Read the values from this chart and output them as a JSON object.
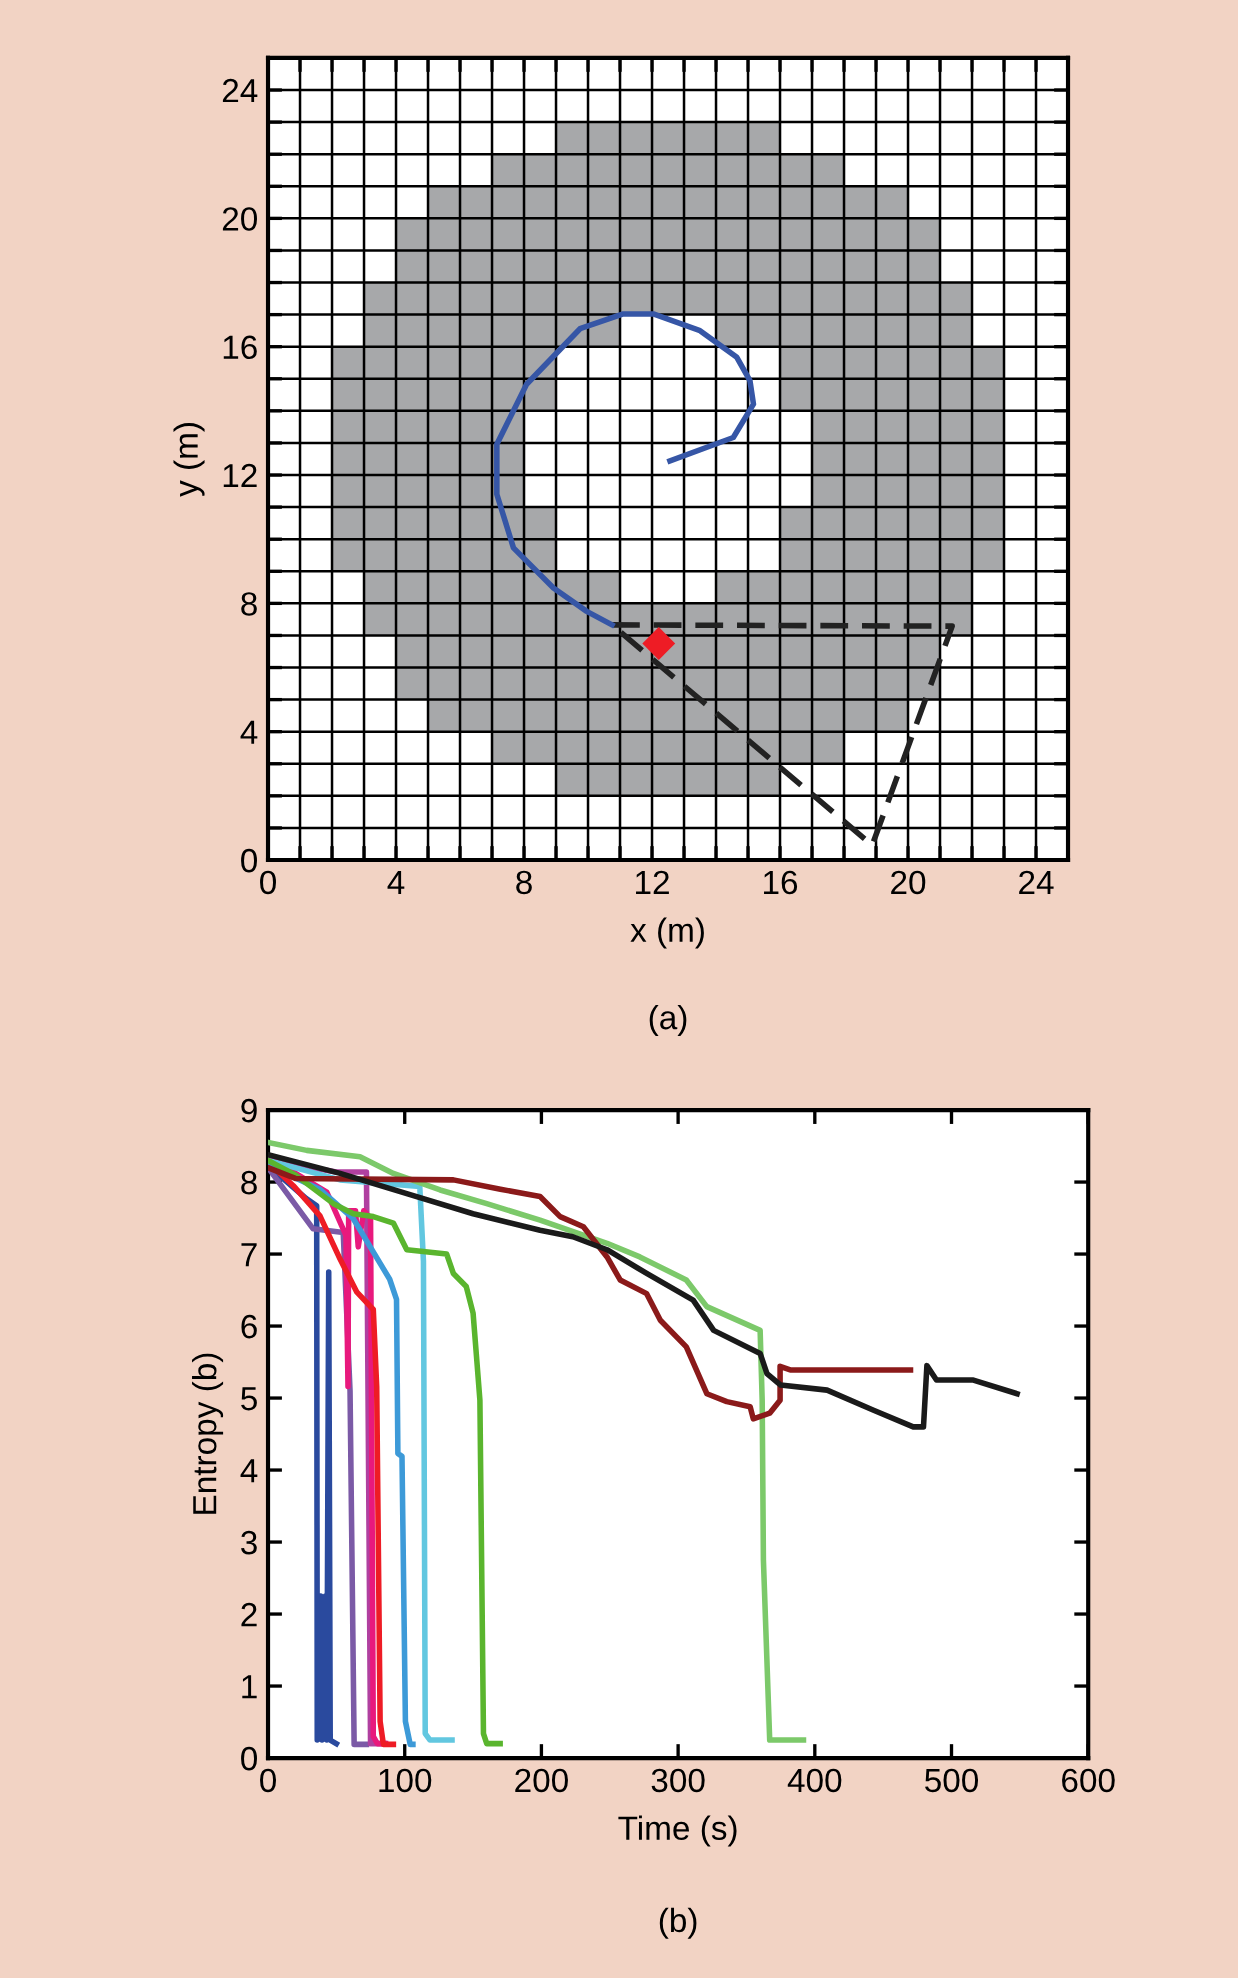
{
  "chart_data": [
    {
      "type": "line",
      "xlabel": "x (m)",
      "ylabel": "y (m)",
      "annotations": [
        "(a)"
      ],
      "xlim": [
        0,
        25
      ],
      "ylim": [
        0,
        25
      ],
      "xticks": [
        0,
        {
          "value": 1,
          "label": null
        },
        {
          "value": 2,
          "label": null
        },
        {
          "value": 3,
          "label": null
        },
        4,
        {
          "value": 5,
          "label": null
        },
        {
          "value": 6,
          "label": null
        },
        {
          "value": 7,
          "label": null
        },
        8,
        {
          "value": 9,
          "label": null
        },
        {
          "value": 10,
          "label": null
        },
        {
          "value": 11,
          "label": null
        },
        12,
        {
          "value": 13,
          "label": null
        },
        {
          "value": 14,
          "label": null
        },
        {
          "value": 15,
          "label": null
        },
        16,
        {
          "value": 17,
          "label": null
        },
        {
          "value": 18,
          "label": null
        },
        {
          "value": 19,
          "label": null
        },
        20,
        {
          "value": 21,
          "label": null
        },
        {
          "value": 22,
          "label": null
        },
        {
          "value": 23,
          "label": null
        },
        24
      ],
      "yticks": [
        0,
        {
          "value": 1,
          "label": null
        },
        {
          "value": 2,
          "label": null
        },
        {
          "value": 3,
          "label": null
        },
        4,
        {
          "value": 5,
          "label": null
        },
        {
          "value": 6,
          "label": null
        },
        {
          "value": 7,
          "label": null
        },
        8,
        {
          "value": 9,
          "label": null
        },
        {
          "value": 10,
          "label": null
        },
        {
          "value": 11,
          "label": null
        },
        12,
        {
          "value": 13,
          "label": null
        },
        {
          "value": 14,
          "label": null
        },
        {
          "value": 15,
          "label": null
        },
        16,
        {
          "value": 17,
          "label": null
        },
        {
          "value": 18,
          "label": null
        },
        {
          "value": 19,
          "label": null
        },
        20,
        {
          "value": 21,
          "label": null
        },
        {
          "value": 22,
          "label": null
        },
        {
          "value": 23,
          "label": null
        },
        24
      ],
      "grid": true,
      "legend": false,
      "series": [
        {
          "type": "line",
          "color": "#3656a6",
          "line_style": "solid",
          "x": [
            10.75,
            9.96,
            8.92,
            7.67,
            7.15,
            7.15,
            8.08,
            9.75,
            11.1,
            12.04,
            13.5,
            14.65,
            15.06,
            15.17,
            14.54,
            12.56
          ],
          "values": [
            7.33,
            7.75,
            8.48,
            9.73,
            11.4,
            12.96,
            14.83,
            16.56,
            17.02,
            17.02,
            16.5,
            15.67,
            14.94,
            14.21,
            13.17,
            12.44
          ]
        },
        {
          "type": "scatter",
          "color": "#ee1c25",
          "marker": "diamond",
          "x": [
            12.21
          ],
          "values": [
            6.75
          ]
        }
      ]
    },
    {
      "type": "line",
      "xlabel": "Time (s)",
      "ylabel": "Entropy (b)",
      "annotations": [
        "(b)"
      ],
      "xlim": [
        0,
        600
      ],
      "ylim": [
        0,
        9
      ],
      "xticks": [
        0,
        100,
        200,
        300,
        400,
        500,
        600
      ],
      "yticks": [
        0,
        1,
        2,
        3,
        4,
        5,
        6,
        7,
        8,
        9
      ],
      "grid": false,
      "legend": false,
      "series": [
        {
          "color": "#2a4a9e",
          "x": [
            0,
            28,
            35.6,
            36,
            38.5,
            39.5,
            42,
            43,
            44.4,
            45.5,
            50
          ],
          "values": [
            8.23,
            7.77,
            7.67,
            0.25,
            2.25,
            0.25,
            2.25,
            0.25,
            6.75,
            0.25,
            0.2
          ]
        },
        {
          "color": "#7b5aa6",
          "x": [
            0,
            33,
            55,
            60,
            63,
            72
          ],
          "values": [
            8.2,
            7.35,
            7.3,
            5.1,
            0.19,
            0.19
          ]
        },
        {
          "color": "#b040a0",
          "x": [
            0,
            50,
            72,
            75,
            85
          ],
          "values": [
            8.3,
            8.14,
            8.14,
            0.2,
            0.2
          ]
        },
        {
          "color": "#e8197d",
          "x": [
            0,
            43,
            57,
            58.5,
            59,
            64,
            66,
            70,
            75,
            77,
            80,
            86
          ],
          "values": [
            8.35,
            7.86,
            7.26,
            5.16,
            7.6,
            7.6,
            7.1,
            7.6,
            7.5,
            0.3,
            0.2,
            0.2
          ]
        },
        {
          "color": "#ee1c25",
          "x": [
            0,
            18.5,
            38,
            52.7,
            65,
            77,
            79.5,
            82,
            84.4,
            91.7
          ],
          "values": [
            8.28,
            7.95,
            7.53,
            6.93,
            6.47,
            6.23,
            5.16,
            0.51,
            0.19,
            0.19
          ]
        },
        {
          "color": "#3d9ad8",
          "x": [
            0,
            38,
            62.4,
            89,
            94,
            95,
            98,
            100.5,
            104,
            106
          ],
          "values": [
            8.23,
            7.9,
            7.49,
            6.65,
            6.37,
            4.23,
            4.19,
            0.51,
            0.19,
            0.19
          ]
        },
        {
          "color": "#62c7e0",
          "x": [
            0,
            52.7,
            111,
            113.7,
            115,
            118.5,
            134.6
          ],
          "values": [
            8.3,
            8.03,
            7.94,
            6.9,
            0.34,
            0.25,
            0.25
          ]
        },
        {
          "color": "#5ab52e",
          "x": [
            0,
            20,
            47.8,
            62.4,
            77,
            91.7,
            101.5,
            130.7,
            135.6,
            145,
            150,
            152.7,
            155,
            157.6,
            160,
            169.8
          ],
          "values": [
            8.3,
            8.1,
            7.7,
            7.56,
            7.52,
            7.43,
            7.06,
            7.0,
            6.73,
            6.55,
            6.18,
            5.53,
            4.97,
            0.34,
            0.2,
            0.2
          ]
        },
        {
          "color": "#7cc96a",
          "x": [
            0,
            28.3,
            67.3,
            91.7,
            125.9,
            160,
            199,
            248,
            272,
            306,
            321,
            360,
            361.5,
            362.4,
            367,
            391.7
          ],
          "values": [
            8.55,
            8.44,
            8.35,
            8.12,
            7.89,
            7.7,
            7.47,
            7.15,
            6.96,
            6.64,
            6.27,
            5.94,
            4.97,
            2.75,
            0.25,
            0.25
          ]
        },
        {
          "color": "#8b1a1a",
          "x": [
            0,
            20,
            135.6,
            170,
            199,
            213.7,
            230.7,
            248,
            257.6,
            277,
            287,
            306,
            321,
            335.6,
            352.7,
            355,
            367,
            374.6,
            374.6,
            382,
            470
          ],
          "values": [
            8.2,
            8.05,
            8.03,
            7.9,
            7.8,
            7.52,
            7.38,
            6.96,
            6.64,
            6.45,
            6.08,
            5.71,
            5.06,
            4.95,
            4.88,
            4.71,
            4.79,
            4.97,
            5.44,
            5.39,
            5.39
          ]
        },
        {
          "color": "#1a1a1a",
          "x": [
            0,
            52.7,
            101.5,
            150,
            199,
            223,
            248,
            277,
            311,
            326,
            360,
            365,
            375,
            409,
            443,
            472,
            479.5,
            482,
            489,
            516,
            548
          ],
          "values": [
            8.38,
            8.12,
            7.84,
            7.56,
            7.33,
            7.24,
            7.06,
            6.73,
            6.36,
            5.94,
            5.62,
            5.34,
            5.18,
            5.11,
            4.83,
            4.6,
            4.6,
            5.45,
            5.25,
            5.25,
            5.06
          ]
        }
      ]
    }
  ]
}
